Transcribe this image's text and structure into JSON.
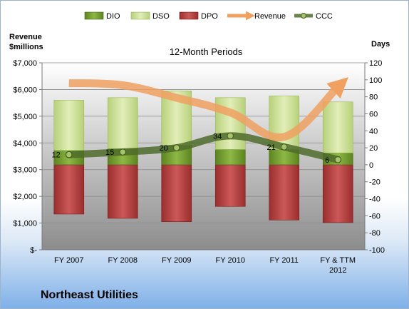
{
  "chart_data": {
    "type": "bar",
    "title": "12-Month Periods",
    "categories": [
      "FY 2007",
      "FY 2008",
      "FY 2009",
      "FY 2010",
      "FY 2011",
      "FY & TTM|2012"
    ],
    "series": [
      {
        "name": "DIO",
        "values": [
          17,
          19,
          23,
          18,
          18,
          14
        ],
        "color": "#6f9a2a"
      },
      {
        "name": "DSO",
        "values": [
          59,
          60,
          64,
          61,
          63,
          60
        ],
        "color": "#cbe08e"
      },
      {
        "name": "DPO",
        "values": [
          -58,
          -63,
          -67,
          -49,
          -65,
          -68
        ],
        "color": "#b84040"
      },
      {
        "name": "Revenue",
        "values": [
          6240,
          6160,
          5690,
          5140,
          4230,
          6100
        ],
        "color": "#f0a060",
        "axis": "left"
      },
      {
        "name": "CCC",
        "values": [
          12,
          15,
          20,
          34,
          21,
          6
        ],
        "color": "#4f6b2a",
        "axis": "right"
      }
    ],
    "ccc_labels": [
      "12",
      "15",
      "20",
      "34",
      "21",
      "6"
    ],
    "ylabel_left": "Revenue|$millions",
    "ylabel_right": "Days",
    "ylim_left": [
      0,
      7000
    ],
    "ylim_right": [
      -100,
      120
    ],
    "yticks_left": [
      "$-",
      "$1,000",
      "$2,000",
      "$3,000",
      "$4,000",
      "$5,000",
      "$6,000",
      "$7,000"
    ],
    "yticks_right": [
      "-100",
      "-80",
      "-60",
      "-40",
      "-20",
      "0",
      "20",
      "40",
      "60",
      "80",
      "100",
      "120"
    ],
    "grid": true,
    "legend": "top"
  },
  "company": "Northeast Utilities"
}
